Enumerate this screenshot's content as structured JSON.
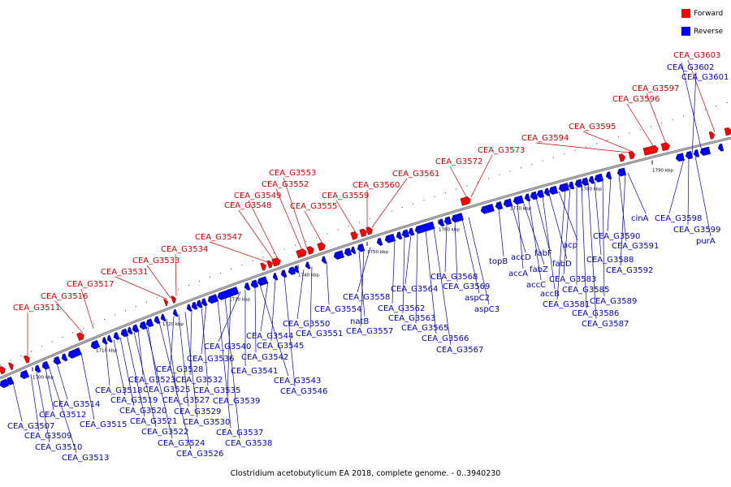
{
  "legend": {
    "forward": {
      "label": "Forward",
      "color": "#ff0000"
    },
    "reverse": {
      "label": "Reverse",
      "color": "#0000ff"
    }
  },
  "caption": "Clostridium acetobutylicum EA 2018, complete genome. - 0..3940230",
  "ticks": [
    "1700 kbp",
    "1710 kbp",
    "1720 kbp",
    "1730 kbp",
    "1740 kbp",
    "1750 kbp",
    "1760 kbp",
    "1770 kbp",
    "1780 kbp",
    "1790 kbp"
  ],
  "forward_genes": [
    "CEA_G3511",
    "CEA_G3516",
    "CEA_G3517",
    "CEA_G3531",
    "CEA_G3533",
    "CEA_G3534",
    "CEA_G3547",
    "CEA_G3548",
    "CEA_G3549",
    "CEA_G3552",
    "CEA_G3553",
    "CEA_G3555",
    "CEA_G3559",
    "CEA_G3560",
    "CEA_G3561",
    "CEA_G3572",
    "CEA_G3573",
    "CEA_G3594",
    "CEA_G3595",
    "CEA_G3596",
    "CEA_G3597",
    "CEA_G3603"
  ],
  "reverse_genes": [
    "CEA_G3507",
    "CEA_G3509",
    "CEA_G3510",
    "CEA_G3512",
    "CEA_G3513",
    "CEA_G3514",
    "CEA_G3515",
    "CEA_G3518",
    "CEA_G3519",
    "CEA_G3520",
    "CEA_G3521",
    "CEA_G3522",
    "CEA_G3523",
    "CEA_G3524",
    "CEA_G3525",
    "CEA_G3526",
    "CEA_G3527",
    "CEA_G3528",
    "CEA_G3529",
    "CEA_G3530",
    "CEA_G3532",
    "CEA_G3535",
    "CEA_G3536",
    "CEA_G3537",
    "CEA_G3538",
    "CEA_G3539",
    "CEA_G3540",
    "CEA_G3541",
    "CEA_G3542",
    "CEA_G3543",
    "CEA_G3544",
    "CEA_G3545",
    "CEA_G3546",
    "CEA_G3550",
    "CEA_G3551",
    "CEA_G3554",
    "natB",
    "CEA_G3557",
    "CEA_G3558",
    "CEA_G3562",
    "CEA_G3563",
    "CEA_G3564",
    "CEA_G3565",
    "CEA_G3566",
    "CEA_G3567",
    "CEA_G3568",
    "CEA_G3569",
    "aspC2",
    "aspC3",
    "topB",
    "accD",
    "accA",
    "fabZ",
    "accC",
    "fabF",
    "accB",
    "fabD",
    "acp",
    "CEA_G3581",
    "CEA_G3583",
    "CEA_G3585",
    "CEA_G3586",
    "CEA_G3587",
    "CEA_G3588",
    "CEA_G3589",
    "CEA_G3590",
    "CEA_G3591",
    "CEA_G3592",
    "cinA",
    "CEA_G3598",
    "CEA_G3599",
    "purA",
    "CEA_G3601",
    "CEA_G3602"
  ]
}
